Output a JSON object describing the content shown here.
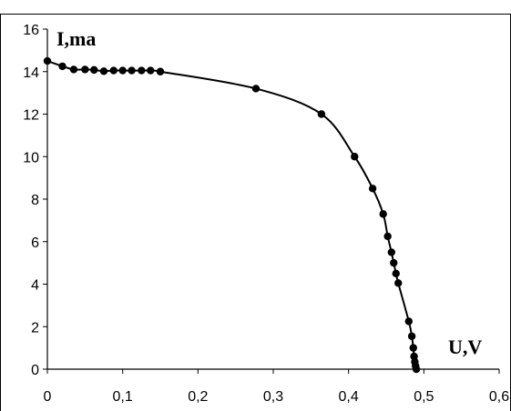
{
  "chart_data": {
    "type": "scatter",
    "title": "",
    "xlabel": "U,V",
    "ylabel": "I,ma",
    "xlim": [
      0,
      0.6
    ],
    "ylim": [
      0,
      16
    ],
    "x_ticks": [
      "0",
      "0,1",
      "0,2",
      "0,3",
      "0,4",
      "0,5",
      "0,6"
    ],
    "y_ticks": [
      "0",
      "2",
      "4",
      "6",
      "8",
      "10",
      "12",
      "14",
      "16"
    ],
    "grid": false,
    "legend": "none",
    "colors": {
      "series": "#000000",
      "frame": "#000000",
      "background": "#ffffff"
    },
    "series": [
      {
        "x": [
          0.0,
          0.02,
          0.035,
          0.05,
          0.062,
          0.075,
          0.088,
          0.1,
          0.112,
          0.125,
          0.137,
          0.15,
          0.277,
          0.364,
          0.408,
          0.432,
          0.446,
          0.452,
          0.457,
          0.46,
          0.463,
          0.466,
          0.48,
          0.484,
          0.486,
          0.487,
          0.488,
          0.489,
          0.49
        ],
        "y": [
          14.5,
          14.25,
          14.1,
          14.1,
          14.08,
          14.02,
          14.05,
          14.05,
          14.05,
          14.05,
          14.05,
          14.0,
          13.2,
          12.0,
          10.0,
          8.5,
          7.3,
          6.25,
          5.5,
          5.0,
          4.5,
          4.05,
          2.25,
          1.55,
          1.0,
          0.6,
          0.35,
          0.15,
          0.0
        ]
      }
    ]
  }
}
